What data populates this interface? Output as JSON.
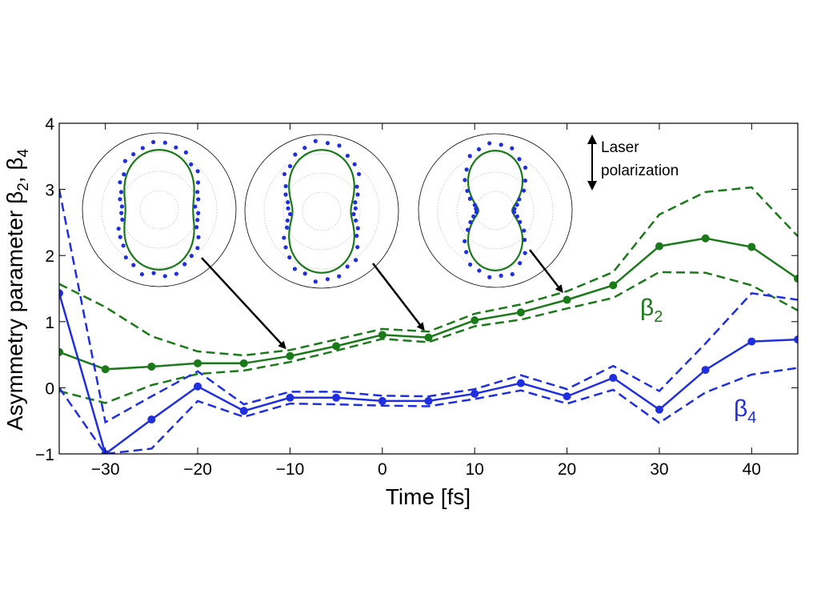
{
  "chart_data": {
    "type": "line",
    "xlabel": "Time [fs]",
    "ylabel": "Asymmetry parameter β",
    "ylabel_subs": [
      "2",
      "4"
    ],
    "ylabel_sep": ", β",
    "xlim": [
      -35,
      45
    ],
    "ylim": [
      -1,
      4
    ],
    "xticks": [
      -30,
      -20,
      -10,
      0,
      10,
      20,
      30,
      40
    ],
    "xtick_labels": [
      "−30",
      "−20",
      "−10",
      "0",
      "10",
      "20",
      "30",
      "40"
    ],
    "yticks": [
      -1,
      0,
      1,
      2,
      3,
      4
    ],
    "ytick_labels": [
      "−1",
      "0",
      "1",
      "2",
      "3",
      "4"
    ],
    "grid": false,
    "series": [
      {
        "name": "β",
        "name_sub": "2",
        "color": "#1a7a1a",
        "x": [
          -35,
          -30,
          -25,
          -20,
          -15,
          -10,
          -5,
          0,
          5,
          10,
          15,
          20,
          25,
          30,
          35,
          40,
          45
        ],
        "y": [
          0.54,
          0.28,
          0.32,
          0.37,
          0.37,
          0.48,
          0.63,
          0.8,
          0.76,
          1.02,
          1.14,
          1.33,
          1.55,
          2.14,
          2.26,
          2.13,
          1.65
        ],
        "upper": [
          1.57,
          1.22,
          0.78,
          0.55,
          0.49,
          0.57,
          0.73,
          0.89,
          0.85,
          1.12,
          1.26,
          1.46,
          1.75,
          2.62,
          2.96,
          3.03,
          2.29
        ],
        "lower": [
          -0.05,
          -0.23,
          0.04,
          0.21,
          0.26,
          0.39,
          0.56,
          0.74,
          0.69,
          0.93,
          1.03,
          1.2,
          1.36,
          1.75,
          1.74,
          1.55,
          1.17
        ]
      },
      {
        "name": "β",
        "name_sub": "4",
        "color": "#1f2fe0",
        "x": [
          -35,
          -30,
          -25,
          -20,
          -15,
          -10,
          -5,
          0,
          5,
          10,
          15,
          20,
          25,
          30,
          35,
          40,
          45
        ],
        "y": [
          1.43,
          -1.0,
          -0.48,
          0.02,
          -0.35,
          -0.15,
          -0.15,
          -0.2,
          -0.2,
          -0.09,
          0.07,
          -0.13,
          0.15,
          -0.33,
          0.27,
          0.7,
          0.73
        ],
        "upper": [
          3.0,
          -0.52,
          -0.13,
          0.25,
          -0.25,
          -0.06,
          -0.06,
          -0.12,
          -0.13,
          -0.02,
          0.19,
          -0.02,
          0.33,
          -0.05,
          0.67,
          1.43,
          1.33
        ],
        "lower": [
          0.0,
          -1.0,
          -0.92,
          -0.2,
          -0.44,
          -0.24,
          -0.25,
          -0.27,
          -0.28,
          -0.17,
          -0.04,
          -0.24,
          -0.03,
          -0.53,
          -0.07,
          0.2,
          0.3
        ]
      }
    ],
    "insets": [
      {
        "description_time": -10,
        "shape": {
          "a": 0.78,
          "b": 0.44
        },
        "points_r": [
          0.85,
          0.8,
          0.9,
          0.72,
          0.95,
          0.83,
          0.76,
          0.88,
          0.66,
          0.92,
          0.81,
          0.7,
          0.86,
          0.93,
          0.77,
          0.74,
          0.89,
          0.82,
          0.68,
          0.91,
          0.79,
          0.87,
          0.73,
          0.84,
          0.96,
          0.71,
          0.83,
          0.78,
          0.9,
          0.75,
          0.86,
          0.69,
          0.94,
          0.8,
          0.77,
          0.88
        ],
        "arrow_target": [
          -10,
          0.48
        ]
      },
      {
        "description_time": 5,
        "shape": {
          "a": 0.8,
          "b": 0.38
        },
        "points_r": [
          0.83,
          0.91,
          0.78,
          0.86,
          0.95,
          0.72,
          0.88,
          0.8,
          0.93,
          0.75,
          0.85,
          0.9,
          0.7,
          0.82,
          0.97,
          0.76,
          0.87,
          0.81,
          0.92,
          0.74,
          0.89,
          0.79,
          0.84,
          0.94,
          0.77,
          0.86,
          0.71,
          0.9,
          0.83,
          0.88,
          0.78,
          0.95,
          0.73,
          0.85,
          0.8,
          0.92
        ],
        "arrow_target": [
          5,
          0.76
        ]
      },
      {
        "description_time": 20,
        "shape": {
          "a": 0.78,
          "b": 0.22
        },
        "points_r": [
          0.8,
          0.86,
          0.74,
          0.9,
          0.78,
          0.83,
          0.7,
          0.88,
          0.82,
          0.76,
          0.91,
          0.79,
          0.85,
          0.72,
          0.87,
          0.81,
          0.93,
          0.77,
          0.84,
          0.75,
          0.89,
          0.8,
          0.86,
          0.73,
          0.82,
          0.9,
          0.78,
          0.85,
          0.71,
          0.88,
          0.79,
          0.84,
          0.76,
          0.92,
          0.81,
          0.87
        ],
        "arrow_target": [
          20,
          1.33
        ]
      }
    ],
    "annotation": {
      "line1": "Laser",
      "line2": "polarization"
    }
  }
}
